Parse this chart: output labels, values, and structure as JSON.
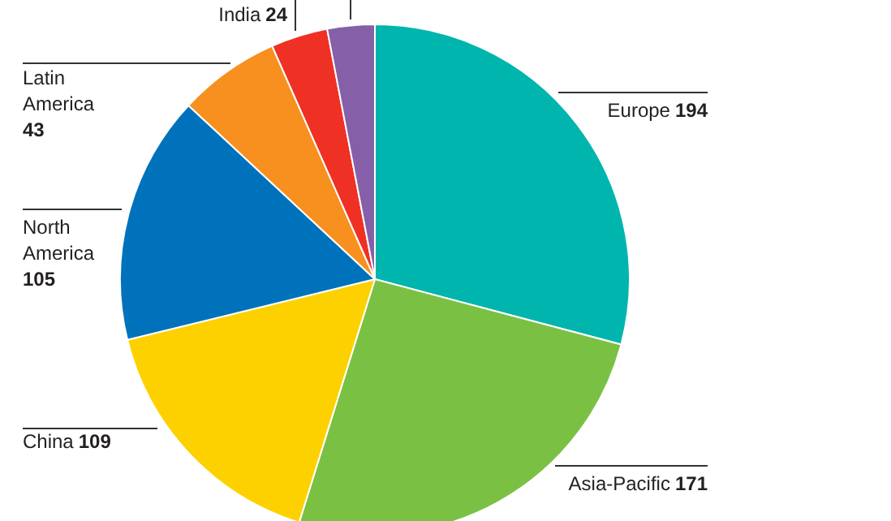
{
  "chart_data": {
    "type": "pie",
    "categories": [
      "Europe",
      "Asia-Pacific",
      "China",
      "North America",
      "Latin America",
      "India",
      null
    ],
    "values": [
      194,
      171,
      109,
      105,
      43,
      24,
      20
    ],
    "value_labels": [
      "194",
      "171",
      "109",
      "105",
      "43",
      "24",
      null
    ],
    "colors": [
      "#00b5ad",
      "#7ac143",
      "#fdd100",
      "#0072bc",
      "#f7901e",
      "#ee3124",
      "#8560a8"
    ]
  }
}
